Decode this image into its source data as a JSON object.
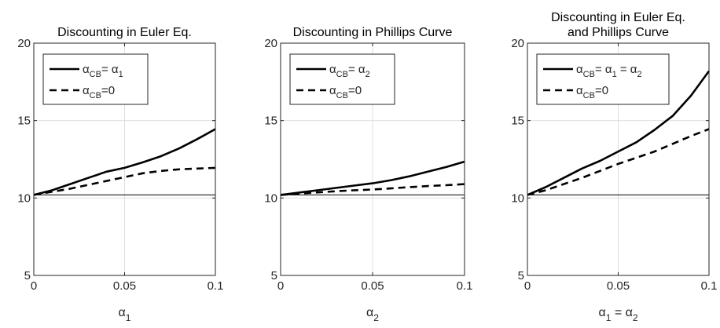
{
  "chart_data": [
    {
      "type": "line",
      "title": "Discounting in Euler Eq.",
      "title_lines": [
        "Discounting in Euler Eq."
      ],
      "xlabel_parts": [
        {
          "sym": "α",
          "sub": "1"
        }
      ],
      "xlim": [
        0,
        0.1
      ],
      "ylim": [
        5,
        20
      ],
      "xticks": [
        {
          "v": 0,
          "label": "0"
        },
        {
          "v": 0.05,
          "label": "0.05"
        },
        {
          "v": 0.1,
          "label": "0.1"
        }
      ],
      "yticks": [
        {
          "v": 5,
          "label": "5"
        },
        {
          "v": 10,
          "label": "10"
        },
        {
          "v": 15,
          "label": "15"
        },
        {
          "v": 20,
          "label": "20"
        }
      ],
      "grid": true,
      "legend_position": "top-left",
      "reference_line": 10.2,
      "x": [
        0,
        0.01,
        0.02,
        0.03,
        0.04,
        0.05,
        0.06,
        0.07,
        0.08,
        0.09,
        0.1
      ],
      "series": [
        {
          "style": "solid",
          "legend_parts": [
            {
              "sym": "α",
              "sub": "CB"
            },
            {
              "t": "= "
            },
            {
              "sym": "α",
              "sub": "1"
            }
          ],
          "values": [
            10.2,
            10.5,
            10.9,
            11.3,
            11.7,
            11.95,
            12.3,
            12.7,
            13.2,
            13.8,
            14.45
          ]
        },
        {
          "style": "dashed",
          "legend_parts": [
            {
              "sym": "α",
              "sub": "CB"
            },
            {
              "t": "=0"
            }
          ],
          "values": [
            10.2,
            10.4,
            10.6,
            10.85,
            11.1,
            11.35,
            11.6,
            11.75,
            11.85,
            11.9,
            11.95
          ]
        }
      ]
    },
    {
      "type": "line",
      "title": "Discounting in Phillips Curve",
      "title_lines": [
        "Discounting in Phillips Curve"
      ],
      "xlabel_parts": [
        {
          "sym": "α",
          "sub": "2"
        }
      ],
      "xlim": [
        0,
        0.1
      ],
      "ylim": [
        5,
        20
      ],
      "xticks": [
        {
          "v": 0,
          "label": "0"
        },
        {
          "v": 0.05,
          "label": "0.05"
        },
        {
          "v": 0.1,
          "label": "0.1"
        }
      ],
      "yticks": [
        {
          "v": 5,
          "label": "5"
        },
        {
          "v": 10,
          "label": "10"
        },
        {
          "v": 15,
          "label": "15"
        },
        {
          "v": 20,
          "label": "20"
        }
      ],
      "grid": true,
      "legend_position": "top-left",
      "reference_line": 10.2,
      "x": [
        0,
        0.01,
        0.02,
        0.03,
        0.04,
        0.05,
        0.06,
        0.07,
        0.08,
        0.09,
        0.1
      ],
      "series": [
        {
          "style": "solid",
          "legend_parts": [
            {
              "sym": "α",
              "sub": "CB"
            },
            {
              "t": "= "
            },
            {
              "sym": "α",
              "sub": "2"
            }
          ],
          "values": [
            10.2,
            10.35,
            10.5,
            10.65,
            10.8,
            10.95,
            11.15,
            11.4,
            11.7,
            12.0,
            12.35
          ]
        },
        {
          "style": "dashed",
          "legend_parts": [
            {
              "sym": "α",
              "sub": "CB"
            },
            {
              "t": "=0"
            }
          ],
          "values": [
            10.2,
            10.28,
            10.36,
            10.44,
            10.5,
            10.55,
            10.62,
            10.7,
            10.77,
            10.83,
            10.9
          ]
        }
      ]
    },
    {
      "type": "line",
      "title": "Discounting in Euler Eq. and Phillips Curve",
      "title_lines": [
        "Discounting in Euler Eq.",
        "and Phillips Curve"
      ],
      "xlabel_parts": [
        {
          "sym": "α",
          "sub": "1"
        },
        {
          "t": " = "
        },
        {
          "sym": "α",
          "sub": "2"
        }
      ],
      "xlim": [
        0,
        0.1
      ],
      "ylim": [
        5,
        20
      ],
      "xticks": [
        {
          "v": 0,
          "label": "0"
        },
        {
          "v": 0.05,
          "label": "0.05"
        },
        {
          "v": 0.1,
          "label": "0.1"
        }
      ],
      "yticks": [
        {
          "v": 5,
          "label": "5"
        },
        {
          "v": 10,
          "label": "10"
        },
        {
          "v": 15,
          "label": "15"
        },
        {
          "v": 20,
          "label": "20"
        }
      ],
      "grid": true,
      "legend_position": "top-left",
      "reference_line": 10.2,
      "x": [
        0,
        0.01,
        0.02,
        0.03,
        0.04,
        0.05,
        0.06,
        0.07,
        0.08,
        0.09,
        0.1
      ],
      "series": [
        {
          "style": "solid",
          "legend_parts": [
            {
              "sym": "α",
              "sub": "CB"
            },
            {
              "t": "= "
            },
            {
              "sym": "α",
              "sub": "1"
            },
            {
              "t": " = "
            },
            {
              "sym": "α",
              "sub": "2"
            }
          ],
          "values": [
            10.2,
            10.7,
            11.3,
            11.9,
            12.4,
            13.0,
            13.6,
            14.4,
            15.3,
            16.6,
            18.2
          ]
        },
        {
          "style": "dashed",
          "legend_parts": [
            {
              "sym": "α",
              "sub": "CB"
            },
            {
              "t": "=0"
            }
          ],
          "values": [
            10.2,
            10.5,
            10.9,
            11.3,
            11.75,
            12.2,
            12.6,
            13.0,
            13.5,
            14.0,
            14.45
          ]
        }
      ]
    }
  ]
}
